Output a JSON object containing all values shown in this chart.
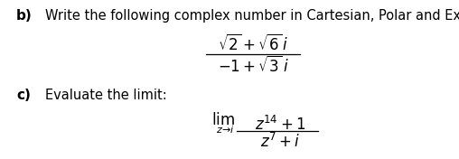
{
  "background_color": "#ffffff",
  "b_label": "b)",
  "b_text": "Write the following complex number in Cartesian, Polar and Exponential form.",
  "numerator": "$\\sqrt{2} + \\sqrt{6}\\,i$",
  "denominator": "$-1 + \\sqrt{3}\\,i$",
  "c_label": "c)",
  "c_text": "Evaluate the limit:",
  "lim_main": "$\\lim$",
  "lim_sub": "$z\\!\\to\\!i$",
  "lim_num": "$z^{14} + 1$",
  "lim_den": "$z^{7} + i$",
  "font_size_label": 11,
  "font_size_body": 10.5,
  "font_size_math": 12,
  "font_size_sub": 8
}
